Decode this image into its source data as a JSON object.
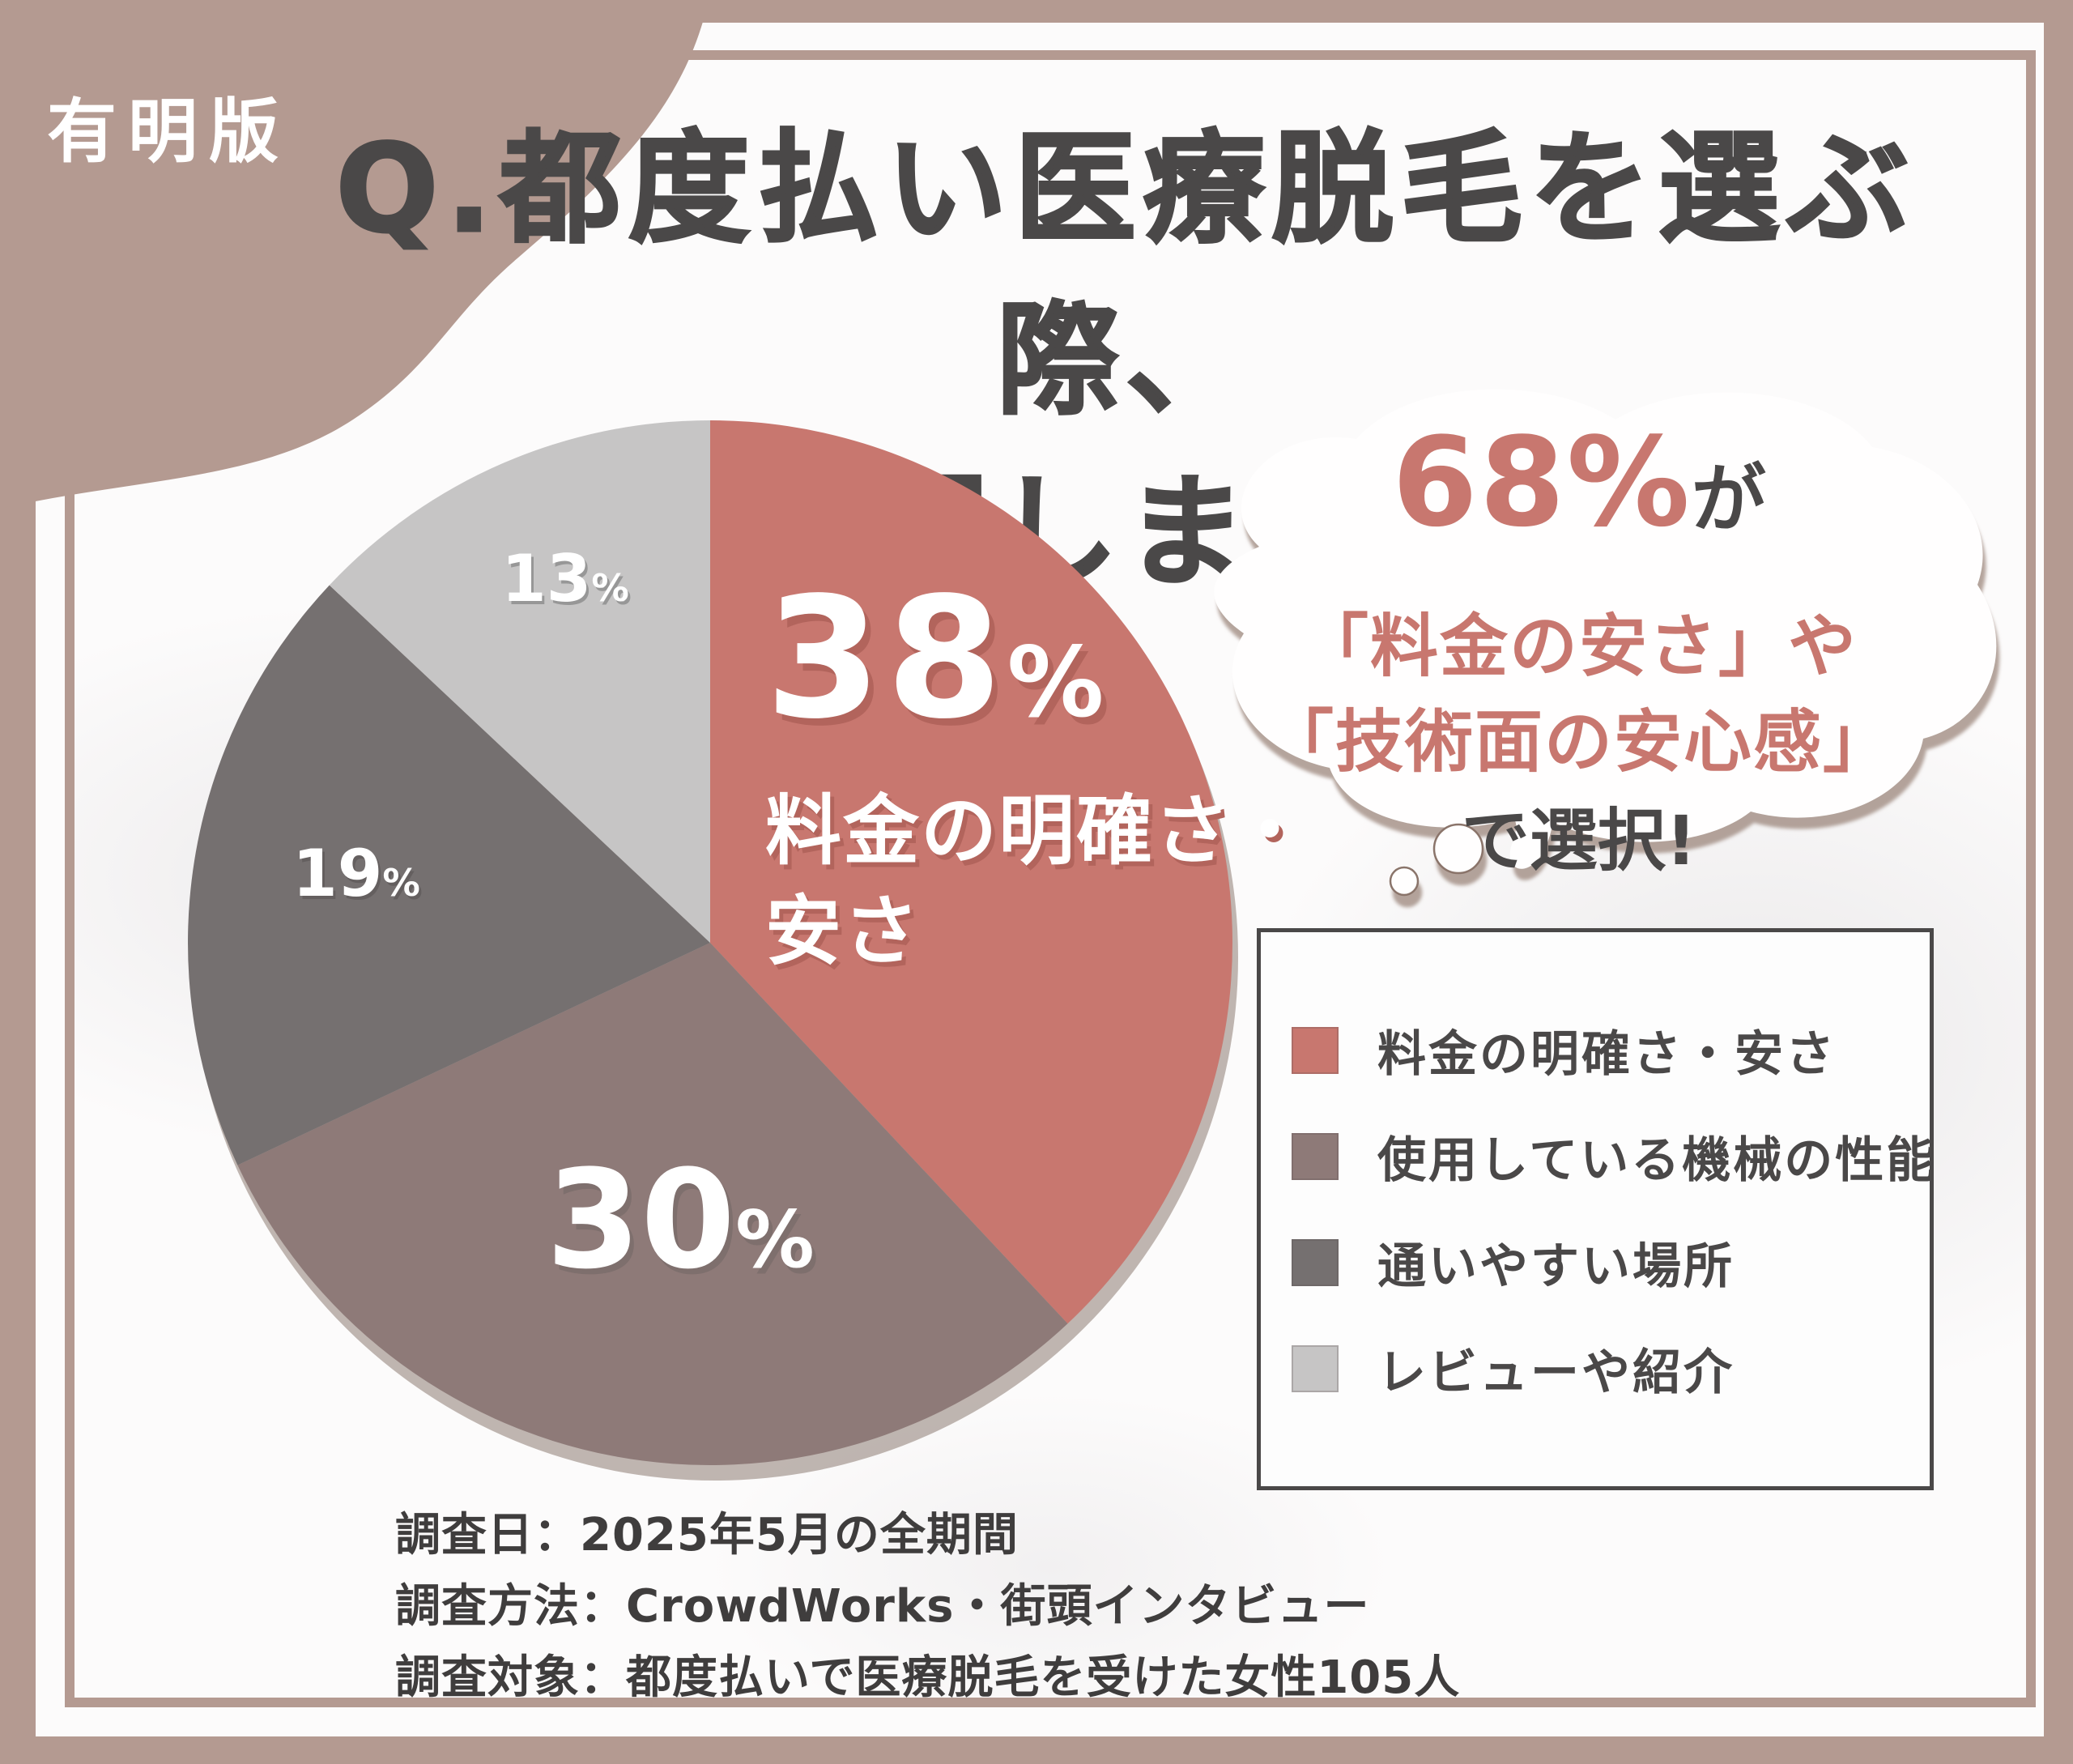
{
  "badge": {
    "label": "有明版"
  },
  "title": {
    "line1": "Q.都度払い医療脱毛を選ぶ際、",
    "line2": "何を重視しましたか？"
  },
  "bubble": {
    "stat": "68%",
    "stat_suffix": "が",
    "line2": "「料金の安さ」や",
    "line3": "「技術面の安心感」",
    "line4": "で選択!"
  },
  "chart_data": {
    "type": "pie",
    "title": "Q.都度払い医療脱毛を選ぶ際、何を重視しましたか？",
    "categories": [
      "料金の明確さ・安さ",
      "使用している機械の性能",
      "通いやすい場所",
      "レビューや紹介"
    ],
    "values": [
      38,
      30,
      19,
      13
    ],
    "unit": "%",
    "colors": [
      "#c8776f",
      "#8e7a78",
      "#757070",
      "#c6c5c5"
    ],
    "start_angle_deg": 0,
    "direction": "clockwise",
    "legend_position": "right",
    "grid": false
  },
  "pie_overlay": {
    "slice0_sub_line1": "料金の明確さ・",
    "slice0_sub_line2": "安さ"
  },
  "legend": {
    "items": [
      {
        "label": "料金の明確さ・安さ",
        "color": "#c8776f"
      },
      {
        "label": "使用している機械の性能",
        "color": "#8e7a78"
      },
      {
        "label": "通いやすい場所",
        "color": "#757070"
      },
      {
        "label": "レビューや紹介",
        "color": "#c6c5c5"
      }
    ]
  },
  "survey": {
    "line1": "調査日：2025年5月の全期間",
    "line2": "調査方法：CrowdWorks・街頭インタビュー",
    "line3": "調査対象：都度払いで医療脱毛を受けた女性105人"
  },
  "colors": {
    "frame": "#b49a91",
    "accent": "#c8776f",
    "dark_text": "#4a4848",
    "accent_shadow": "#b2645c"
  }
}
